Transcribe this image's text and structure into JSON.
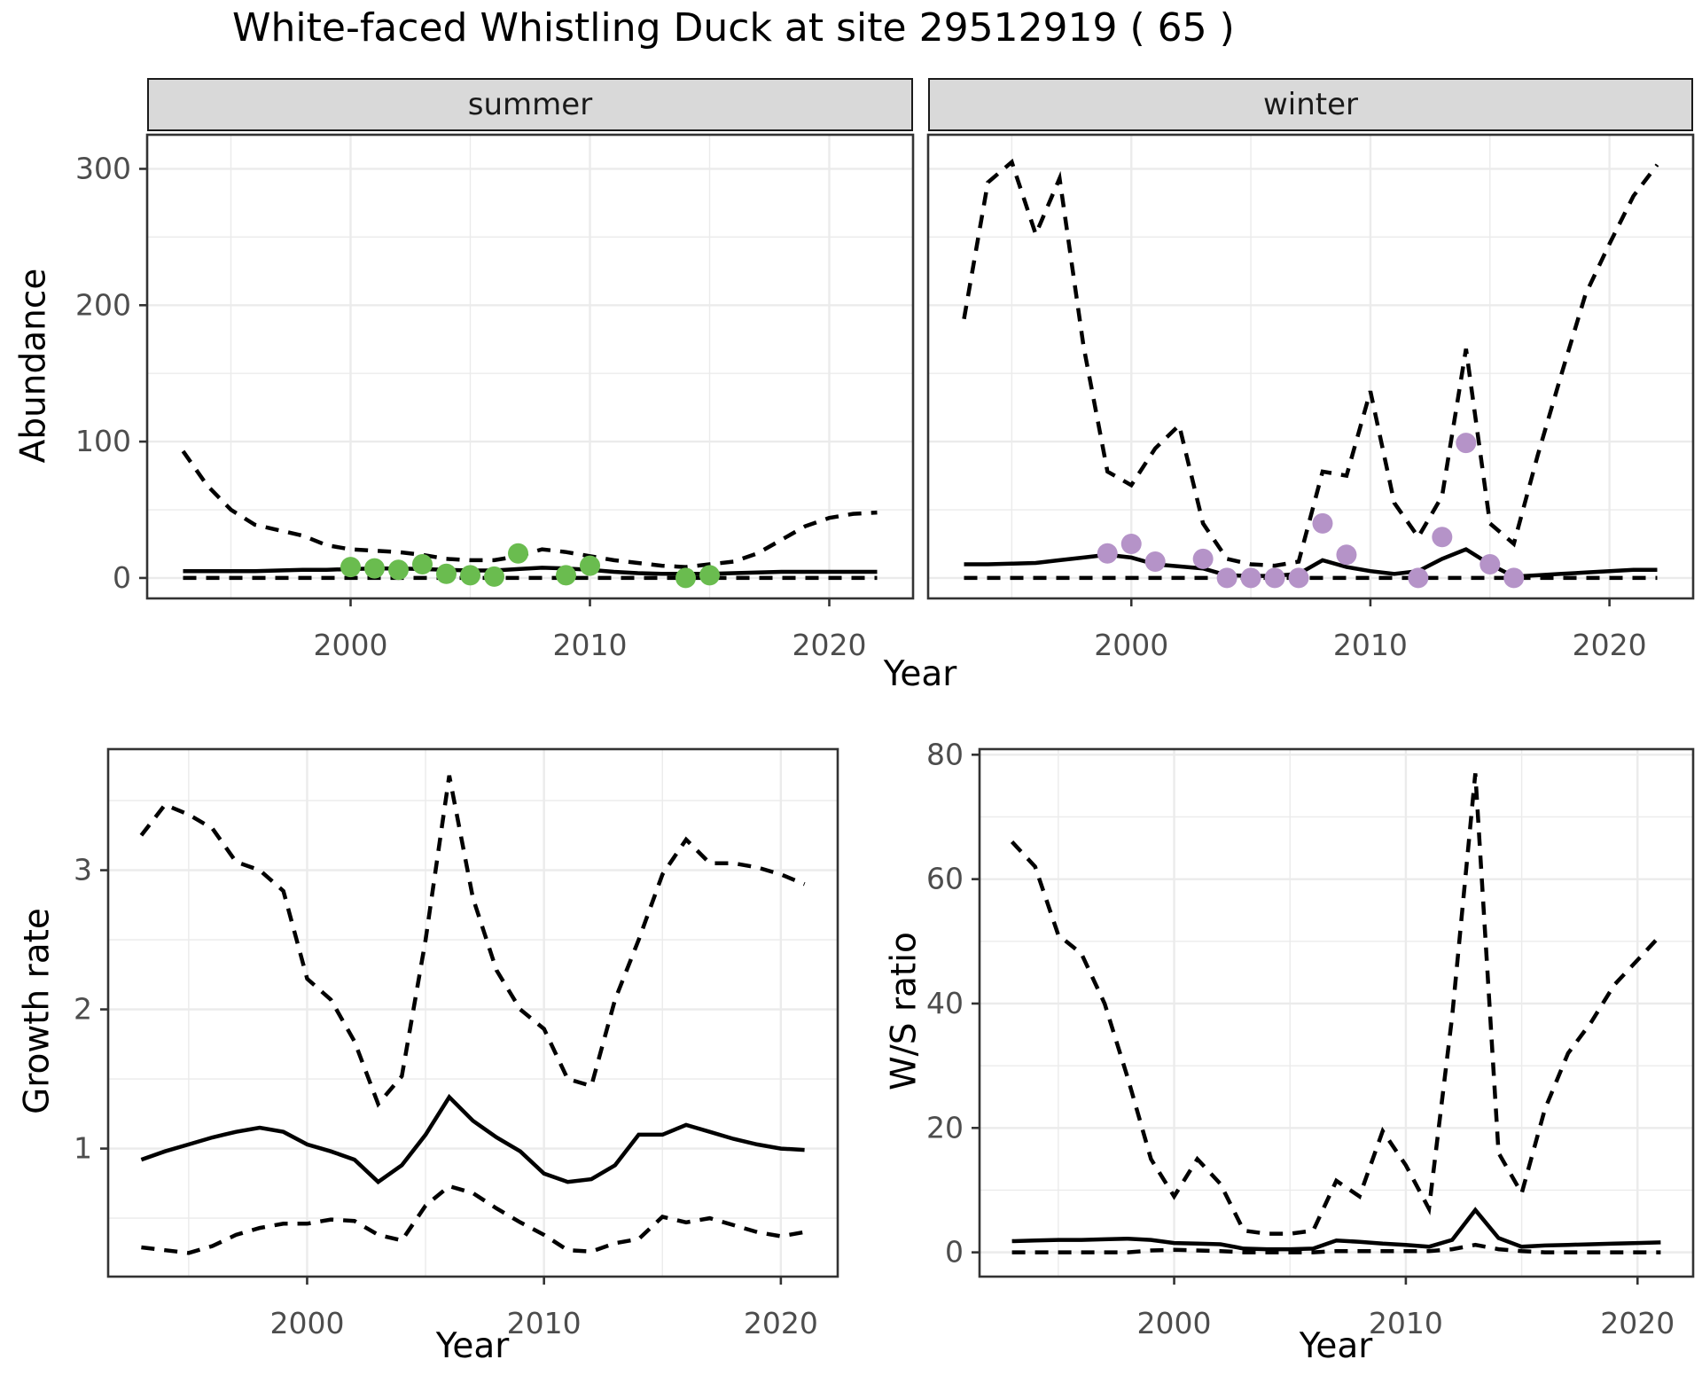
{
  "title": "White-faced Whistling Duck at site 29512919 ( 65 )",
  "colors": {
    "line": "#000000",
    "grid": "#ebebeb",
    "panel_border": "#333333",
    "strip_fill": "#d9d9d9",
    "tick_label": "#4d4d4d",
    "summer_point": "#6abc4f",
    "winter_point": "#b593c8"
  },
  "chart_data": [
    {
      "id": "abundance-summer",
      "type": "line",
      "facet": "summer",
      "xlabel": "Year",
      "ylabel": "Abundance",
      "legend": "none",
      "grid": "on",
      "x_range": [
        1991.5,
        2023.5
      ],
      "y_range": [
        -15,
        325
      ],
      "x_ticks": [
        2000,
        2010,
        2020
      ],
      "x_minor": [
        1995,
        2005,
        2015
      ],
      "y_ticks": [
        0,
        100,
        200,
        300
      ],
      "y_minor": [
        50,
        150,
        250
      ],
      "years": [
        1993,
        1994,
        1995,
        1996,
        1997,
        1998,
        1999,
        2000,
        2001,
        2002,
        2003,
        2004,
        2005,
        2006,
        2007,
        2008,
        2009,
        2010,
        2011,
        2012,
        2013,
        2014,
        2015,
        2016,
        2017,
        2018,
        2019,
        2020,
        2021,
        2022
      ],
      "series": [
        {
          "name": "median",
          "style": "solid",
          "values": [
            5,
            5,
            5,
            5,
            5.5,
            6,
            6,
            6.5,
            7,
            7,
            6.5,
            6,
            5.5,
            5.5,
            6.5,
            7.5,
            7,
            6,
            4.5,
            3.5,
            3,
            3,
            3,
            3.5,
            4,
            4.5,
            4.5,
            4.5,
            4.5,
            4.5
          ]
        },
        {
          "name": "upper_ci",
          "style": "dashed",
          "values": [
            93,
            68,
            50,
            39,
            35,
            31,
            24,
            21,
            20,
            19,
            17,
            14,
            13,
            13,
            16,
            21,
            19,
            16,
            13,
            11,
            9,
            8,
            10,
            12,
            18,
            28,
            38,
            44,
            47,
            48
          ]
        },
        {
          "name": "lower_ci",
          "style": "dashed",
          "values": [
            0,
            0,
            0,
            0,
            0,
            0,
            0,
            0,
            0,
            0,
            0,
            0,
            0,
            0,
            0,
            0,
            0,
            0,
            0,
            0,
            0,
            0,
            0,
            0,
            0,
            0,
            0,
            0,
            0,
            0
          ]
        }
      ],
      "points": {
        "name": "summer-observations",
        "color": "#6abc4f",
        "data": [
          [
            2000,
            8
          ],
          [
            2001,
            7
          ],
          [
            2002,
            6
          ],
          [
            2003,
            10
          ],
          [
            2004,
            3
          ],
          [
            2005,
            2
          ],
          [
            2006,
            1
          ],
          [
            2007,
            18
          ],
          [
            2009,
            2
          ],
          [
            2010,
            9
          ],
          [
            2014,
            0
          ],
          [
            2015,
            2
          ]
        ]
      }
    },
    {
      "id": "abundance-winter",
      "type": "line",
      "facet": "winter",
      "xlabel": "Year",
      "ylabel": "Abundance",
      "legend": "none",
      "grid": "on",
      "x_range": [
        1991.5,
        2023.5
      ],
      "y_range": [
        -15,
        325
      ],
      "x_ticks": [
        2000,
        2010,
        2020
      ],
      "x_minor": [
        1995,
        2005,
        2015
      ],
      "y_ticks": [
        0,
        100,
        200,
        300
      ],
      "y_minor": [
        50,
        150,
        250
      ],
      "years": [
        1993,
        1994,
        1995,
        1996,
        1997,
        1998,
        1999,
        2000,
        2001,
        2002,
        2003,
        2004,
        2005,
        2006,
        2007,
        2008,
        2009,
        2010,
        2011,
        2012,
        2013,
        2014,
        2015,
        2016,
        2017,
        2018,
        2019,
        2020,
        2021,
        2022
      ],
      "series": [
        {
          "name": "median",
          "style": "solid",
          "values": [
            10,
            10,
            10.5,
            11,
            13,
            15,
            17,
            15,
            10,
            8.5,
            7,
            2,
            1.5,
            1.5,
            3,
            13,
            8,
            5,
            3,
            5,
            14,
            21,
            10,
            1,
            2,
            3,
            4,
            5,
            6,
            6
          ]
        },
        {
          "name": "upper_ci",
          "style": "dashed",
          "values": [
            190,
            290,
            305,
            252,
            293,
            170,
            78,
            68,
            95,
            112,
            40,
            14,
            10,
            9,
            12,
            78,
            75,
            137,
            55,
            30,
            60,
            168,
            40,
            25,
            90,
            150,
            208,
            245,
            280,
            303
          ]
        },
        {
          "name": "lower_ci",
          "style": "dashed",
          "values": [
            0,
            0,
            0,
            0,
            0,
            0,
            0,
            0,
            0,
            0,
            0,
            0,
            0,
            0,
            0,
            0,
            0,
            0,
            0,
            0,
            0,
            0,
            0,
            0,
            0,
            0,
            0,
            0,
            0,
            0
          ]
        }
      ],
      "points": {
        "name": "winter-observations",
        "color": "#b593c8",
        "data": [
          [
            1999,
            18
          ],
          [
            2000,
            25
          ],
          [
            2001,
            12
          ],
          [
            2003,
            14
          ],
          [
            2004,
            0
          ],
          [
            2005,
            0
          ],
          [
            2006,
            0
          ],
          [
            2007,
            0
          ],
          [
            2008,
            40
          ],
          [
            2009,
            17
          ],
          [
            2012,
            0
          ],
          [
            2013,
            30
          ],
          [
            2014,
            99
          ],
          [
            2015,
            10
          ],
          [
            2016,
            0
          ]
        ]
      }
    },
    {
      "id": "growth-rate",
      "type": "line",
      "facet": "",
      "xlabel": "Year",
      "ylabel": "Growth rate",
      "legend": "none",
      "grid": "on",
      "x_range": [
        1991.6,
        2022.4
      ],
      "y_range": [
        0.08,
        3.87
      ],
      "x_ticks": [
        2000,
        2010,
        2020
      ],
      "x_minor": [
        1995,
        2005,
        2015
      ],
      "y_ticks": [
        1,
        2,
        3
      ],
      "y_minor": [
        0.5,
        1.5,
        2.5,
        3.5
      ],
      "years": [
        1993,
        1994,
        1995,
        1996,
        1997,
        1998,
        1999,
        2000,
        2001,
        2002,
        2003,
        2004,
        2005,
        2006,
        2007,
        2008,
        2009,
        2010,
        2011,
        2012,
        2013,
        2014,
        2015,
        2016,
        2017,
        2018,
        2019,
        2020,
        2021
      ],
      "series": [
        {
          "name": "median",
          "style": "solid",
          "values": [
            0.92,
            0.98,
            1.03,
            1.08,
            1.12,
            1.15,
            1.12,
            1.03,
            0.98,
            0.92,
            0.76,
            0.88,
            1.1,
            1.37,
            1.2,
            1.08,
            0.98,
            0.82,
            0.76,
            0.78,
            0.88,
            1.1,
            1.1,
            1.17,
            1.12,
            1.07,
            1.03,
            1.0,
            0.99
          ]
        },
        {
          "name": "upper_ci",
          "style": "dashed",
          "values": [
            3.25,
            3.47,
            3.4,
            3.3,
            3.06,
            3.0,
            2.85,
            2.22,
            2.07,
            1.77,
            1.32,
            1.52,
            2.5,
            3.68,
            2.8,
            2.28,
            2.0,
            1.86,
            1.5,
            1.45,
            2.07,
            2.5,
            2.97,
            3.22,
            3.05,
            3.05,
            3.02,
            2.97,
            2.9
          ]
        },
        {
          "name": "lower_ci",
          "style": "dashed",
          "values": [
            0.29,
            0.27,
            0.25,
            0.3,
            0.38,
            0.43,
            0.46,
            0.46,
            0.49,
            0.48,
            0.38,
            0.34,
            0.59,
            0.73,
            0.68,
            0.57,
            0.47,
            0.38,
            0.27,
            0.26,
            0.32,
            0.35,
            0.51,
            0.47,
            0.5,
            0.45,
            0.4,
            0.37,
            0.4
          ]
        }
      ],
      "points": null
    },
    {
      "id": "ws-ratio",
      "type": "line",
      "facet": "",
      "xlabel": "Year",
      "ylabel": "W/S ratio",
      "legend": "none",
      "grid": "on",
      "x_range": [
        1991.6,
        2022.4
      ],
      "y_range": [
        -3.9,
        80.9
      ],
      "x_ticks": [
        2000,
        2010,
        2020
      ],
      "x_minor": [
        1995,
        2005,
        2015
      ],
      "y_ticks": [
        0,
        20,
        40,
        60,
        80
      ],
      "y_minor": [
        10,
        30,
        50,
        70
      ],
      "years": [
        1993,
        1994,
        1995,
        1996,
        1997,
        1998,
        1999,
        2000,
        2001,
        2002,
        2003,
        2004,
        2005,
        2006,
        2007,
        2008,
        2009,
        2010,
        2011,
        2012,
        2013,
        2014,
        2015,
        2016,
        2017,
        2018,
        2019,
        2020,
        2021
      ],
      "series": [
        {
          "name": "median",
          "style": "solid",
          "values": [
            1.8,
            1.9,
            2.0,
            2.0,
            2.1,
            2.2,
            2.0,
            1.5,
            1.4,
            1.3,
            0.6,
            0.5,
            0.5,
            0.6,
            1.9,
            1.7,
            1.4,
            1.2,
            0.9,
            2.0,
            6.8,
            2.3,
            0.9,
            1.1,
            1.2,
            1.3,
            1.4,
            1.5,
            1.6
          ]
        },
        {
          "name": "upper_ci",
          "style": "dashed",
          "values": [
            66,
            62,
            51,
            48,
            40,
            28,
            15,
            9,
            15,
            11,
            3.5,
            3,
            3,
            3.5,
            11.5,
            9,
            19.5,
            14,
            7,
            38,
            77,
            16,
            9.5,
            23,
            32,
            37,
            43,
            47,
            51
          ]
        },
        {
          "name": "lower_ci",
          "style": "dashed",
          "values": [
            0,
            0,
            0,
            0,
            0,
            0,
            0.3,
            0.4,
            0.3,
            0.2,
            0,
            0,
            0,
            0,
            0.2,
            0.2,
            0.2,
            0.2,
            0.2,
            0.5,
            1.2,
            0.5,
            0.2,
            0,
            0,
            0,
            0,
            0,
            0
          ]
        }
      ],
      "points": null
    }
  ]
}
